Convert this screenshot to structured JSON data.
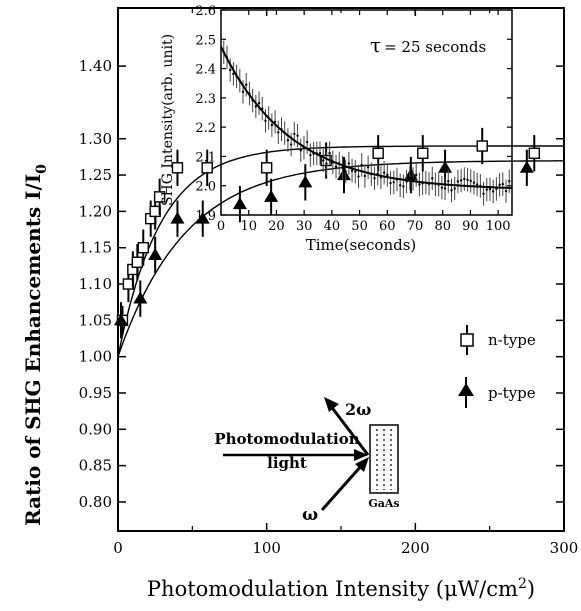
{
  "chart_data": [
    {
      "type": "scatter",
      "xlabel_text": "Photomodulation Intensity (",
      "xlabel_mu": "μ",
      "xlabel_unit": "W/cm",
      "xlabel_sup": "2",
      "xlabel_close": ")",
      "ylabel_text": "Ratio of SHG Enhancements I/I",
      "ylabel_sub": "0",
      "xlim": [
        0,
        300
      ],
      "ylim": [
        0.76,
        1.48
      ],
      "xticks": [
        "0",
        "100",
        "200",
        "300"
      ],
      "yticks": [
        "0.80",
        "0.85",
        "0.90",
        "0.95",
        "1.00",
        "1.05",
        "1.10",
        "1.15",
        "1.20",
        "1.25",
        "1.30",
        "1.40"
      ],
      "ytick_values": [
        0.8,
        0.85,
        0.9,
        0.95,
        1.0,
        1.05,
        1.1,
        1.15,
        1.2,
        1.25,
        1.3,
        1.4
      ],
      "legend_position": "right",
      "series": [
        {
          "name": "n-type",
          "marker": "square",
          "x": [
            3,
            7,
            10,
            13,
            17,
            22,
            25,
            28,
            40,
            60,
            100,
            140,
            175,
            205,
            245,
            280
          ],
          "y": [
            1.05,
            1.1,
            1.12,
            1.13,
            1.15,
            1.19,
            1.2,
            1.22,
            1.26,
            1.26,
            1.26,
            1.27,
            1.28,
            1.28,
            1.29,
            1.28
          ],
          "err": [
            0.02,
            0.025,
            0.025,
            0.025,
            0.025,
            0.025,
            0.025,
            0.025,
            0.025,
            0.025,
            0.025,
            0.025,
            0.025,
            0.025,
            0.025,
            0.025
          ],
          "fit": {
            "a": 1.0,
            "b": 0.29,
            "k": 0.035
          }
        },
        {
          "name": "p-type",
          "marker": "triangle",
          "x": [
            2,
            15,
            25,
            40,
            57,
            82,
            103,
            126,
            152,
            197,
            220,
            275
          ],
          "y": [
            1.05,
            1.08,
            1.14,
            1.19,
            1.19,
            1.21,
            1.22,
            1.24,
            1.25,
            1.25,
            1.26,
            1.26
          ],
          "err": [
            0.025,
            0.025,
            0.025,
            0.025,
            0.025,
            0.025,
            0.025,
            0.025,
            0.025,
            0.025,
            0.025,
            0.025
          ],
          "fit": {
            "a": 1.0,
            "b": 0.27,
            "k": 0.022
          }
        }
      ],
      "diagram": {
        "beam_label_1": "Photomodulation",
        "beam_label_2": "light",
        "reflected_label": "2ω",
        "incident_label": "ω",
        "sample_label": "GaAs"
      }
    },
    {
      "type": "scatter",
      "ylabel": "SHG Intensity(arb. unit)",
      "xlabel": "Time(seconds)",
      "annotation_tau": "τ",
      "annotation_value": "= 25 seconds",
      "xlim": [
        0,
        105
      ],
      "ylim": [
        1.9,
        2.6
      ],
      "xticks": [
        "0",
        "10",
        "20",
        "30",
        "40",
        "50",
        "60",
        "70",
        "80",
        "90",
        "100"
      ],
      "yticks": [
        "1.9",
        "2.0",
        "2.1",
        "2.2",
        "2.3",
        "2.4",
        "2.5",
        "2.6"
      ],
      "fit": {
        "y_inf": 1.985,
        "amplitude": 0.49,
        "tau": 25
      },
      "noise_amplitude": 0.025,
      "error_bar_halfwidth": 0.04,
      "point_count": 90
    }
  ]
}
